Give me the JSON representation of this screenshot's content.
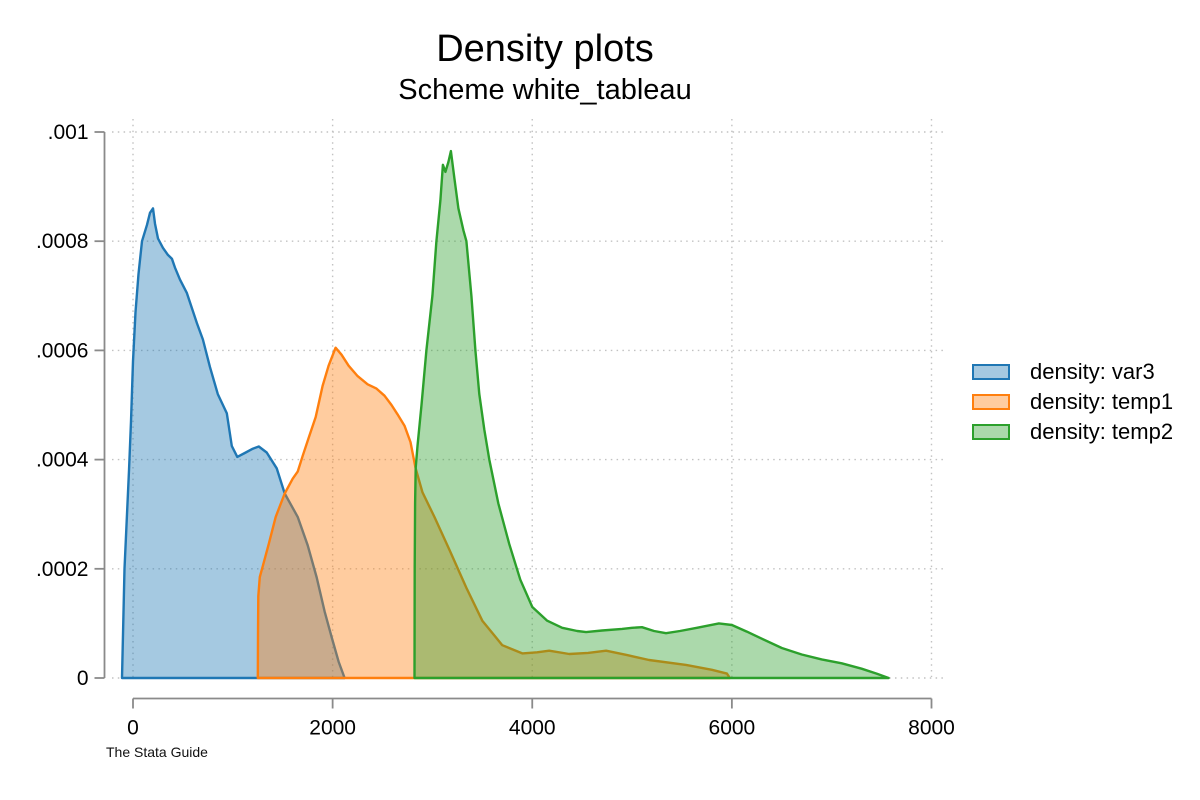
{
  "figure": {
    "title": "Density plots",
    "subtitle": "Scheme white_tableau",
    "caption": "The Stata Guide"
  },
  "style": {
    "background": "#ffffff",
    "axis_color": "#8a8a8a",
    "grid_color": "#c2c2c2",
    "text_color": "#000000",
    "fill_opacity": 0.4
  },
  "chart_data": {
    "type": "area",
    "title": "Density plots",
    "subtitle": "Scheme white_tableau",
    "caption": "The Stata Guide",
    "xlabel": "",
    "ylabel": "",
    "xlim": [
      0,
      8000
    ],
    "ylim": [
      0,
      0.001
    ],
    "grid": "dotted, both axes",
    "x_ticks": [
      {
        "value": 0,
        "label": "0"
      },
      {
        "value": 2000,
        "label": "2000"
      },
      {
        "value": 4000,
        "label": "4000"
      },
      {
        "value": 6000,
        "label": "6000"
      },
      {
        "value": 8000,
        "label": "8000"
      }
    ],
    "y_ticks": [
      {
        "value": 0,
        "label": "0"
      },
      {
        "value": 0.0002,
        "label": ".0002"
      },
      {
        "value": 0.0004,
        "label": ".0004"
      },
      {
        "value": 0.0006,
        "label": ".0006"
      },
      {
        "value": 0.0008,
        "label": ".0008"
      },
      {
        "value": 0.001,
        "label": ".001"
      }
    ],
    "legend": {
      "position": "right",
      "items": [
        {
          "label": "density: var3",
          "color": "#1f77b4"
        },
        {
          "label": "density: temp1",
          "color": "#ff7f0e"
        },
        {
          "label": "density: temp2",
          "color": "#2ca02c"
        }
      ]
    },
    "series": [
      {
        "name": "density: var3",
        "key": "var3",
        "color": "#1f77b4",
        "points": [
          [
            -110,
            0
          ],
          [
            -100,
            8e-05
          ],
          [
            -85,
            0.0002
          ],
          [
            -60,
            0.0003
          ],
          [
            -40,
            0.00038
          ],
          [
            -20,
            0.00047
          ],
          [
            0,
            0.00058
          ],
          [
            25,
            0.00067
          ],
          [
            55,
            0.00074
          ],
          [
            90,
            0.0008
          ],
          [
            140,
            0.00083
          ],
          [
            170,
            0.000852
          ],
          [
            200,
            0.00086
          ],
          [
            220,
            0.000832
          ],
          [
            250,
            0.000805
          ],
          [
            300,
            0.000788
          ],
          [
            350,
            0.000775
          ],
          [
            390,
            0.000768
          ],
          [
            420,
            0.000752
          ],
          [
            470,
            0.00073
          ],
          [
            540,
            0.000705
          ],
          [
            640,
            0.00065
          ],
          [
            700,
            0.00062
          ],
          [
            770,
            0.00057
          ],
          [
            850,
            0.00052
          ],
          [
            940,
            0.000485
          ],
          [
            990,
            0.000425
          ],
          [
            1045,
            0.000405
          ],
          [
            1120,
            0.000412
          ],
          [
            1200,
            0.00042
          ],
          [
            1260,
            0.000424
          ],
          [
            1340,
            0.000413
          ],
          [
            1440,
            0.000384
          ],
          [
            1520,
            0.000338
          ],
          [
            1650,
            0.000295
          ],
          [
            1750,
            0.000243
          ],
          [
            1840,
            0.000184
          ],
          [
            1920,
            0.000122
          ],
          [
            1990,
            7.5e-05
          ],
          [
            2060,
            3e-05
          ],
          [
            2120,
            0
          ]
        ]
      },
      {
        "name": "density: temp1",
        "key": "temp1",
        "color": "#ff7f0e",
        "points": [
          [
            1250,
            0
          ],
          [
            1252,
            8e-05
          ],
          [
            1255,
            0.00015
          ],
          [
            1270,
            0.000185
          ],
          [
            1300,
            0.000205
          ],
          [
            1360,
            0.000245
          ],
          [
            1430,
            0.000295
          ],
          [
            1520,
            0.000338
          ],
          [
            1600,
            0.000365
          ],
          [
            1650,
            0.000378
          ],
          [
            1700,
            0.000407
          ],
          [
            1760,
            0.00044
          ],
          [
            1830,
            0.000478
          ],
          [
            1900,
            0.000535
          ],
          [
            1960,
            0.000572
          ],
          [
            2030,
            0.000605
          ],
          [
            2090,
            0.000592
          ],
          [
            2160,
            0.000572
          ],
          [
            2250,
            0.000553
          ],
          [
            2350,
            0.000538
          ],
          [
            2440,
            0.00053
          ],
          [
            2520,
            0.000517
          ],
          [
            2590,
            0.0005
          ],
          [
            2650,
            0.000483
          ],
          [
            2720,
            0.000462
          ],
          [
            2780,
            0.000432
          ],
          [
            2830,
            0.000385
          ],
          [
            2900,
            0.00034
          ],
          [
            3020,
            0.000295
          ],
          [
            3170,
            0.000235
          ],
          [
            3340,
            0.000165
          ],
          [
            3500,
            0.000105
          ],
          [
            3700,
            6e-05
          ],
          [
            3900,
            4.5e-05
          ],
          [
            4050,
            4.7e-05
          ],
          [
            4170,
            5e-05
          ],
          [
            4370,
            4.4e-05
          ],
          [
            4560,
            4.6e-05
          ],
          [
            4740,
            5e-05
          ],
          [
            4950,
            4.2e-05
          ],
          [
            5170,
            3.3e-05
          ],
          [
            5540,
            2.4e-05
          ],
          [
            5800,
            1.5e-05
          ],
          [
            5950,
            8e-06
          ],
          [
            5980,
            0
          ]
        ]
      },
      {
        "name": "density: temp2",
        "key": "temp2",
        "color": "#2ca02c",
        "points": [
          [
            2820,
            0
          ],
          [
            2822,
            0.0002
          ],
          [
            2826,
            0.00032
          ],
          [
            2832,
            0.000385
          ],
          [
            2850,
            0.000425
          ],
          [
            2890,
            0.0005
          ],
          [
            2940,
            0.0006
          ],
          [
            3000,
            0.0007
          ],
          [
            3040,
            0.0008
          ],
          [
            3080,
            0.000875
          ],
          [
            3105,
            0.00094
          ],
          [
            3130,
            0.000927
          ],
          [
            3160,
            0.000945
          ],
          [
            3185,
            0.000965
          ],
          [
            3220,
            0.000915
          ],
          [
            3260,
            0.00086
          ],
          [
            3310,
            0.00082
          ],
          [
            3340,
            0.0008
          ],
          [
            3390,
            0.0007
          ],
          [
            3430,
            0.0006
          ],
          [
            3470,
            0.00052
          ],
          [
            3520,
            0.000455
          ],
          [
            3570,
            0.0004
          ],
          [
            3660,
            0.00032
          ],
          [
            3770,
            0.000245
          ],
          [
            3880,
            0.00018
          ],
          [
            4000,
            0.00013
          ],
          [
            4150,
            0.000105
          ],
          [
            4300,
            9.2e-05
          ],
          [
            4450,
            8.6e-05
          ],
          [
            4540,
            8.4e-05
          ],
          [
            4700,
            8.7e-05
          ],
          [
            4900,
            9e-05
          ],
          [
            5000,
            9.2e-05
          ],
          [
            5100,
            9.3e-05
          ],
          [
            5220,
            8.6e-05
          ],
          [
            5340,
            8.2e-05
          ],
          [
            5480,
            8.6e-05
          ],
          [
            5650,
            9.2e-05
          ],
          [
            5870,
            0.0001
          ],
          [
            6000,
            9.7e-05
          ],
          [
            6150,
            8.5e-05
          ],
          [
            6300,
            7.2e-05
          ],
          [
            6500,
            5.5e-05
          ],
          [
            6700,
            4.3e-05
          ],
          [
            6900,
            3.4e-05
          ],
          [
            7100,
            2.7e-05
          ],
          [
            7300,
            1.7e-05
          ],
          [
            7450,
            8e-06
          ],
          [
            7570,
            0
          ]
        ]
      }
    ]
  }
}
